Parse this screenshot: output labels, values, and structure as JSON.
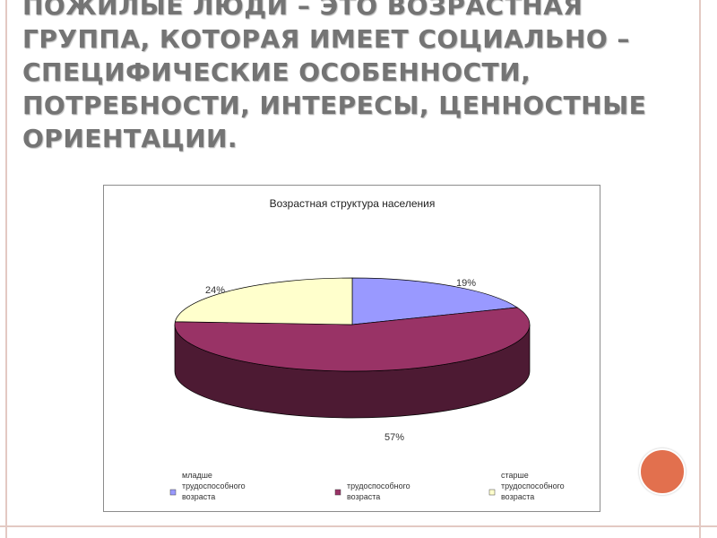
{
  "slide": {
    "title": "ПОЖИЛЫЕ ЛЮДИ – ЭТО ВОЗРАСТНАЯ ГРУППА, КОТОРАЯ ИМЕЕТ СОЦИАЛЬНО – СПЕЦИФИЧЕСКИЕ ОСОБЕННОСТИ, ПОТРЕБНОСТИ, ИНТЕРЕСЫ, ЦЕННОСТНЫЕ ОРИЕНТАЦИИ."
  },
  "chart_data": {
    "type": "pie",
    "title": "Возрастная структура населения",
    "slices": [
      {
        "label": "младше трудоспособного возраста",
        "value": 19,
        "value_label": "19%",
        "color": "#9999ff",
        "side_color": "#5a5aa6"
      },
      {
        "label": "трудоспособного возраста",
        "value": 57,
        "value_label": "57%",
        "color": "#993366",
        "side_color": "#4d1a33"
      },
      {
        "label": "старше трудоспособного возраста",
        "value": 24,
        "value_label": "24%",
        "color": "#ffffcc",
        "side_color": "#b3b38f"
      }
    ],
    "legend_position": "bottom",
    "legend": [
      {
        "lines": [
          "младше",
          "трудоспособного",
          "возраста"
        ]
      },
      {
        "lines": [
          "трудоспособного",
          "возраста"
        ]
      },
      {
        "lines": [
          "старше",
          "трудоспособного",
          "возраста"
        ]
      }
    ]
  }
}
